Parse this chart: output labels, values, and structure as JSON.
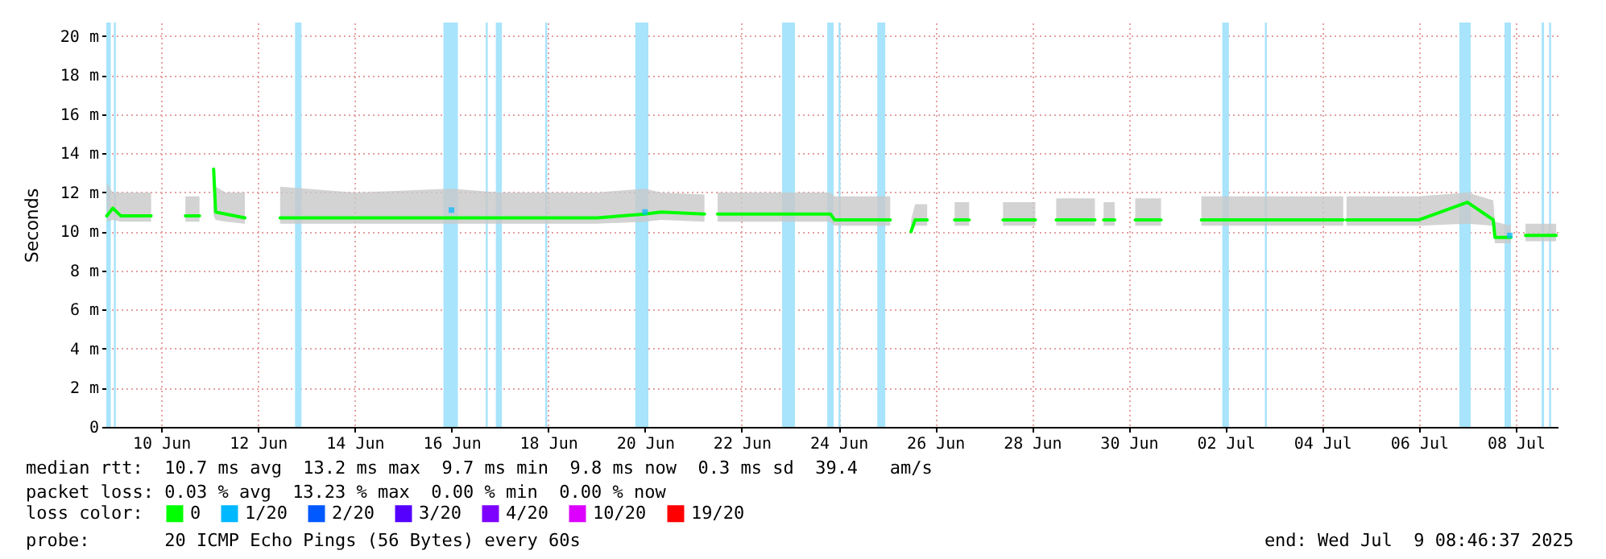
{
  "chart_data": {
    "type": "line",
    "ylabel": "Seconds",
    "legend_title": "loss color:",
    "legend": "bottom left",
    "grid": true,
    "xlim": [
      "2025-06-09T08:46",
      "2025-07-09T08:46"
    ],
    "xticks": [
      {
        "value": "2025-06-10T12:00",
        "label": "10 Jun"
      },
      {
        "value": "2025-06-12T12:00",
        "label": "12 Jun"
      },
      {
        "value": "2025-06-14T12:00",
        "label": "14 Jun"
      },
      {
        "value": "2025-06-16T12:00",
        "label": "16 Jun"
      },
      {
        "value": "2025-06-18T12:00",
        "label": "18 Jun"
      },
      {
        "value": "2025-06-20T12:00",
        "label": "20 Jun"
      },
      {
        "value": "2025-06-22T12:00",
        "label": "22 Jun"
      },
      {
        "value": "2025-06-24T12:00",
        "label": "24 Jun"
      },
      {
        "value": "2025-06-26T12:00",
        "label": "26 Jun"
      },
      {
        "value": "2025-06-28T12:00",
        "label": "28 Jun"
      },
      {
        "value": "2025-06-30T12:00",
        "label": "30 Jun"
      },
      {
        "value": "2025-07-02T12:00",
        "label": "02 Jul"
      },
      {
        "value": "2025-07-04T12:00",
        "label": "04 Jul"
      },
      {
        "value": "2025-07-06T12:00",
        "label": "06 Jul"
      },
      {
        "value": "2025-07-08T12:00",
        "label": "08 Jul"
      }
    ],
    "ylim": [
      0,
      20.7
    ],
    "yticks": [
      {
        "value": 0,
        "label": "0"
      },
      {
        "value": 2,
        "label": "2 m"
      },
      {
        "value": 4,
        "label": "4 m"
      },
      {
        "value": 6,
        "label": "6 m"
      },
      {
        "value": 8,
        "label": "8 m"
      },
      {
        "value": 10,
        "label": "10 m"
      },
      {
        "value": 12,
        "label": "12 m"
      },
      {
        "value": 14,
        "label": "14 m"
      },
      {
        "value": 16,
        "label": "16 m"
      },
      {
        "value": 18,
        "label": "18 m"
      },
      {
        "value": 20,
        "label": "20 m"
      }
    ],
    "series": [
      {
        "name": "0",
        "color": "#00ff00",
        "x": [
          "2025-06-09T09:00",
          "2025-06-09T12:00",
          "2025-06-09T16:00",
          "2025-06-10T07:00",
          "2025-06-10T12:00",
          "2025-06-11T00:00",
          "2025-06-11T07:00",
          "2025-06-11T10:00",
          "2025-06-11T14:00",
          "2025-06-11T15:00",
          "2025-06-11T20:00",
          "2025-06-12T05:30",
          "2025-06-12T12:00",
          "2025-06-12T23:00",
          "2025-06-14T12:00",
          "2025-06-16T12:00",
          "2025-06-17T12:00",
          "2025-06-19T12:00",
          "2025-06-20T12:00",
          "2025-06-20T20:00",
          "2025-06-21T17:30",
          "2025-06-21T20:00",
          "2025-06-22T00:00",
          "2025-06-23T12:00",
          "2025-06-24T08:00",
          "2025-06-24T10:00",
          "2025-06-25T13:40",
          "2025-06-25T18:00",
          "2025-06-26T00:00",
          "2025-06-26T02:00",
          "2025-06-26T08:00",
          "2025-06-26T14:00",
          "2025-06-26T21:36",
          "2025-06-27T04:48",
          "2025-06-27T12:00",
          "2025-06-27T21:36",
          "2025-06-28T13:40",
          "2025-06-28T18:00",
          "2025-06-29T00:00",
          "2025-06-29T19:12",
          "2025-06-29T22:00",
          "2025-06-29T23:30",
          "2025-06-30T05:00",
          "2025-06-30T09:00",
          "2025-06-30T15:12",
          "2025-07-01T04:00",
          "2025-07-01T14:00",
          "2025-07-02T00:00",
          "2025-07-03T12:00",
          "2025-07-04T22:24",
          "2025-07-04T23:00",
          "2025-07-05T00:00",
          "2025-07-06T12:00",
          "2025-07-07T12:00",
          "2025-07-08T00:48",
          "2025-07-08T01:40",
          "2025-07-08T09:36",
          "2025-07-08T13:00",
          "2025-07-08T16:48",
          "2025-07-09T08:00"
        ],
        "values": [
          10.8,
          11.2,
          10.8,
          10.8,
          null,
          10.8,
          10.8,
          null,
          13.2,
          11.0,
          10.9,
          10.7,
          null,
          10.7,
          10.7,
          10.7,
          10.7,
          10.7,
          10.9,
          11.0,
          10.9,
          null,
          10.9,
          10.9,
          10.9,
          10.6,
          10.6,
          null,
          10.0,
          10.6,
          10.6,
          null,
          10.6,
          10.6,
          null,
          10.6,
          10.6,
          null,
          10.6,
          10.6,
          null,
          10.6,
          10.6,
          null,
          10.6,
          10.6,
          null,
          10.6,
          10.6,
          10.6,
          null,
          10.6,
          10.6,
          11.5,
          10.6,
          9.7,
          9.7,
          null,
          9.8,
          9.8
        ],
        "lower": [
          10.5,
          10.6,
          10.5,
          10.5,
          null,
          10.5,
          10.5,
          null,
          10.8,
          10.6,
          10.5,
          10.4,
          null,
          10.4,
          10.4,
          10.4,
          10.4,
          10.4,
          10.5,
          10.6,
          10.5,
          null,
          10.5,
          10.5,
          10.5,
          10.3,
          10.3,
          null,
          9.9,
          10.3,
          10.3,
          null,
          10.3,
          10.3,
          null,
          10.3,
          10.3,
          null,
          10.3,
          10.3,
          null,
          10.3,
          10.3,
          null,
          10.3,
          10.3,
          null,
          10.3,
          10.3,
          10.3,
          null,
          10.3,
          10.3,
          10.4,
          10.3,
          9.4,
          9.4,
          null,
          9.5,
          9.5
        ],
        "upper": [
          12.5,
          12.0,
          12.0,
          12.0,
          null,
          11.8,
          11.8,
          null,
          13.5,
          12.3,
          12.0,
          12.0,
          null,
          12.3,
          12.0,
          12.2,
          12.0,
          12.0,
          12.2,
          12.0,
          11.9,
          null,
          12.0,
          12.0,
          12.0,
          11.8,
          11.8,
          null,
          10.6,
          11.4,
          11.4,
          null,
          11.5,
          11.5,
          null,
          11.5,
          11.5,
          null,
          11.7,
          11.7,
          null,
          11.5,
          11.5,
          null,
          11.7,
          11.7,
          null,
          11.8,
          11.8,
          11.8,
          null,
          11.8,
          11.8,
          12.0,
          11.6,
          10.5,
          10.3,
          null,
          10.4,
          10.4
        ]
      },
      {
        "name": "1/20",
        "type": "scatter",
        "marker": "square",
        "color": "#00b8ff",
        "x": [
          "2025-06-16T12:00",
          "2025-06-20T12:00",
          "2025-07-08T09:00"
        ],
        "values": [
          11.1,
          11.0,
          9.8
        ]
      },
      {
        "name": "2/20",
        "type": "scatter",
        "marker": "square",
        "color": "#0059ff"
      },
      {
        "name": "3/20",
        "type": "scatter",
        "marker": "square",
        "color": "#5500ff"
      },
      {
        "name": "4/20",
        "type": "scatter",
        "marker": "square",
        "color": "#7e00ff"
      },
      {
        "name": "10/20",
        "type": "scatter",
        "marker": "square",
        "color": "#dd00ff"
      },
      {
        "name": "19/20",
        "type": "scatter",
        "marker": "square",
        "color": "#ff0000"
      }
    ],
    "bands": [
      {
        "axis": "x",
        "from": "2025-06-09T08:46",
        "to": "2025-06-09T11:00",
        "color": "#a8e4fc"
      },
      {
        "axis": "x",
        "from": "2025-06-09T12:30",
        "to": "2025-06-09T13:30",
        "color": "#a8e4fc"
      },
      {
        "axis": "x",
        "from": "2025-06-13T06:24",
        "to": "2025-06-13T09:36",
        "color": "#a8e4fc"
      },
      {
        "axis": "x",
        "from": "2025-06-16T08:00",
        "to": "2025-06-16T15:12",
        "color": "#a8e4fc"
      },
      {
        "axis": "x",
        "from": "2025-06-17T05:00",
        "to": "2025-06-17T06:00",
        "color": "#a8e4fc"
      },
      {
        "axis": "x",
        "from": "2025-06-17T10:00",
        "to": "2025-06-17T13:00",
        "color": "#a8e4fc"
      },
      {
        "axis": "x",
        "from": "2025-06-18T10:30",
        "to": "2025-06-18T11:30",
        "color": "#a8e4fc"
      },
      {
        "axis": "x",
        "from": "2025-06-20T07:12",
        "to": "2025-06-20T13:40",
        "color": "#a8e4fc"
      },
      {
        "axis": "x",
        "from": "2025-06-23T08:00",
        "to": "2025-06-23T14:24",
        "color": "#a8e4fc"
      },
      {
        "axis": "x",
        "from": "2025-06-24T06:24",
        "to": "2025-06-24T09:36",
        "color": "#a8e4fc"
      },
      {
        "axis": "x",
        "from": "2025-06-24T12:00",
        "to": "2025-06-24T13:00",
        "color": "#a8e4fc"
      },
      {
        "axis": "x",
        "from": "2025-06-25T07:12",
        "to": "2025-06-25T11:12",
        "color": "#a8e4fc"
      },
      {
        "axis": "x",
        "from": "2025-07-02T10:24",
        "to": "2025-07-02T13:40",
        "color": "#a8e4fc"
      },
      {
        "axis": "x",
        "from": "2025-07-03T07:30",
        "to": "2025-07-03T08:30",
        "color": "#a8e4fc"
      },
      {
        "axis": "x",
        "from": "2025-07-07T08:00",
        "to": "2025-07-07T13:36",
        "color": "#a8e4fc"
      },
      {
        "axis": "x",
        "from": "2025-07-08T06:24",
        "to": "2025-07-08T09:36",
        "color": "#a8e4fc"
      },
      {
        "axis": "x",
        "from": "2025-07-09T00:48",
        "to": "2025-07-09T02:00",
        "color": "#a8e4fc"
      },
      {
        "axis": "x",
        "from": "2025-07-09T04:30",
        "to": "2025-07-09T05:30",
        "color": "#a8e4fc"
      }
    ],
    "annotations": [
      "median rtt:  10.7 ms avg  13.2 ms max  9.7 ms min  9.8 ms now  0.3 ms sd  39.4   am/s",
      "packet loss: 0.03 % avg  13.23 % max  0.00 % min  0.00 % now",
      "probe:       20 ICMP Echo Pings (56 Bytes) every 60s",
      "end: Wed Jul  9 08:46:37 2025"
    ]
  }
}
